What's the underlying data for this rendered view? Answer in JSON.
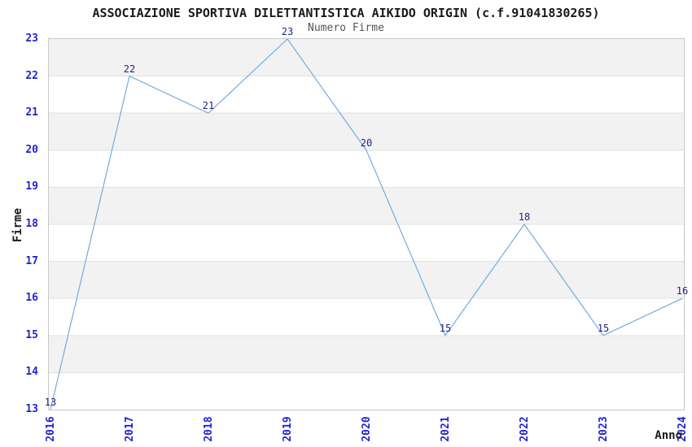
{
  "chart_data": {
    "type": "line",
    "title": "ASSOCIAZIONE SPORTIVA DILETTANTISTICA AIKIDO ORIGIN (c.f.91041830265)",
    "subtitle": "Numero Firme",
    "xlabel": "Anno",
    "ylabel": "Firme",
    "x": [
      "2016",
      "2017",
      "2018",
      "2019",
      "2020",
      "2021",
      "2022",
      "2023",
      "2024"
    ],
    "values": [
      13,
      22,
      21,
      23,
      20,
      15,
      18,
      15,
      16
    ],
    "ylim": [
      13,
      23
    ],
    "ytick_step": 1,
    "show_point_labels": true,
    "layout": {
      "gridlines": "horizontal",
      "background_bands": "alternating-gray-white",
      "x_tick_rotation_deg": 90,
      "legend": "none"
    }
  },
  "colors": {
    "line": "#74aadf",
    "tick_label": "#2323cf",
    "point_label": "#1e1e8f",
    "band": "#f2f2f2",
    "gridline": "#e1e1e1",
    "plot_border": "#c9c9c9",
    "title_text": "#1a1a1a",
    "subtitle_text": "#555555",
    "background": "#ffffff"
  }
}
